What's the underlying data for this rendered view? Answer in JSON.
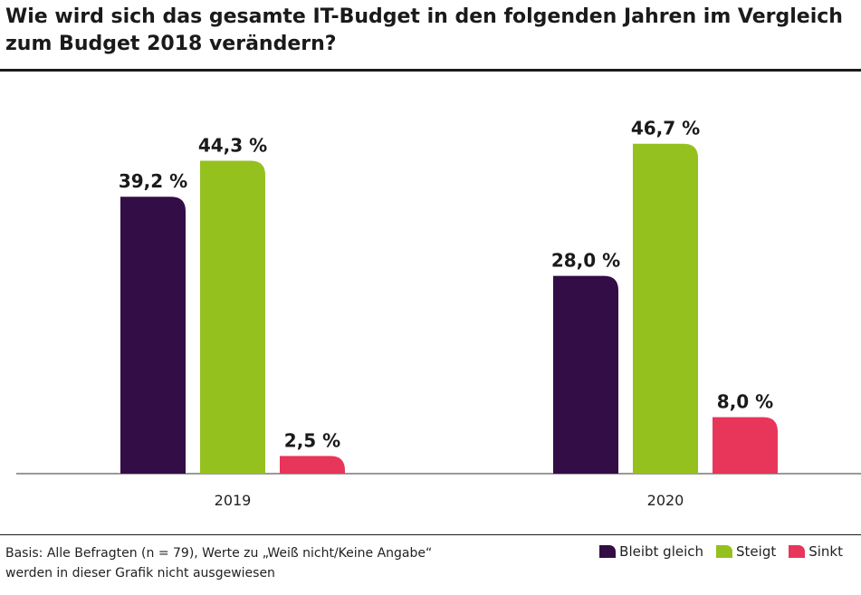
{
  "header": {
    "title_line1": "Wie wird sich das gesamte IT-Budget in den folgenden Jahren im Vergleich",
    "title_line2": "zum Budget 2018 verändern?"
  },
  "chart_data": {
    "type": "bar",
    "title": "Wie wird sich das gesamte IT-Budget in den folgenden Jahren im Vergleich zum Budget 2018 verändern?",
    "categories": [
      "2019",
      "2020"
    ],
    "series": [
      {
        "name": "Bleibt gleich",
        "color": "#330d45",
        "values": [
          39.2,
          28.0
        ],
        "labels": [
          "39,2 %",
          "28,0 %"
        ]
      },
      {
        "name": "Steigt",
        "color": "#95c11f",
        "values": [
          44.3,
          46.7
        ],
        "labels": [
          "44,3 %",
          "46,7 %"
        ]
      },
      {
        "name": "Sinkt",
        "color": "#e8355a",
        "values": [
          2.5,
          8.0
        ],
        "labels": [
          "2,5 %",
          "8,0 %"
        ]
      }
    ],
    "ylim": [
      0,
      50
    ],
    "unit": "%",
    "grid": false,
    "legend_position": "bottom-right"
  },
  "footer": {
    "note_line1": "Basis: Alle Befragten (n = 79), Werte zu „Weiß nicht/Keine Angabe“",
    "note_line2": "werden in dieser Grafik nicht ausgewiesen"
  }
}
